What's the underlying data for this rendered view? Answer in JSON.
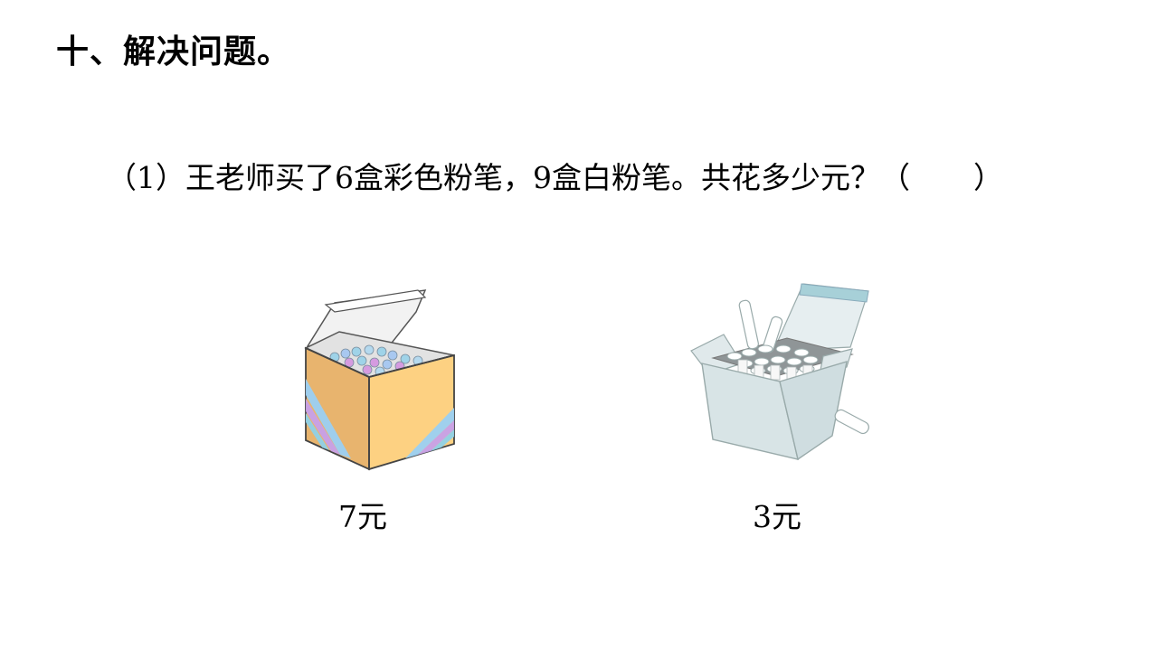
{
  "section": {
    "title": "十、解决问题。"
  },
  "question": {
    "number": "（1）",
    "text": "王老师买了6盒彩色粉笔，9盒白粉笔。共花多少元？",
    "answer_open": "（",
    "answer_close": "）"
  },
  "items": [
    {
      "icon": "colored-chalk-box-icon",
      "price_label": "7元",
      "colors": {
        "box_front": "#e8b46e",
        "box_side": "#fdd182",
        "box_inside": "#dcdcdc",
        "stripes": [
          "#8fd1e6",
          "#c7a0e8",
          "#9bd0f2"
        ]
      }
    },
    {
      "icon": "white-chalk-box-icon",
      "price_label": "3元",
      "colors": {
        "box": "#d8e4e6",
        "lid_edge": "#a7d0d8",
        "chalk": "#ffffff"
      }
    }
  ]
}
